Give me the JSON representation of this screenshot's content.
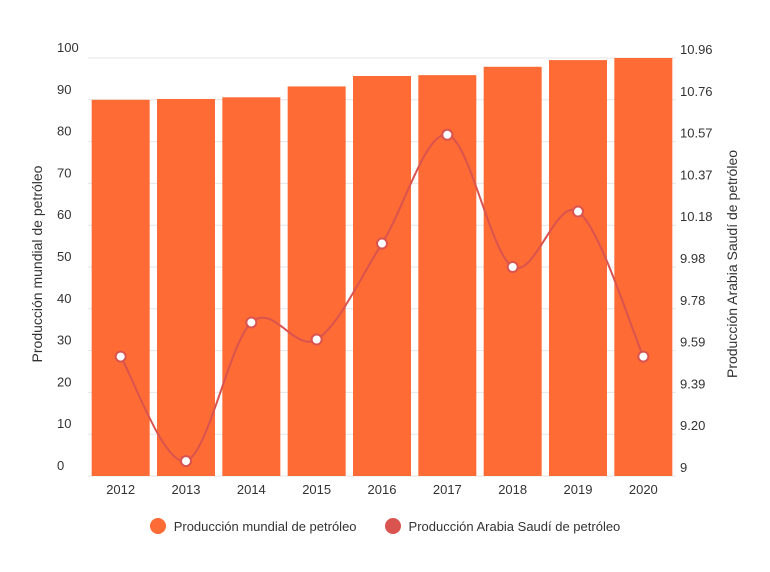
{
  "chart_data": {
    "type": "bar",
    "categories": [
      "2012",
      "2013",
      "2014",
      "2015",
      "2016",
      "2017",
      "2018",
      "2019",
      "2020"
    ],
    "series": [
      {
        "name": "Producción mundial de petróleo",
        "type": "bar",
        "axis": "left",
        "color": "#ff6b35",
        "values": [
          90,
          90.2,
          90.6,
          93.2,
          95.7,
          95.9,
          97.9,
          99.5,
          100
        ]
      },
      {
        "name": "Producción Arabia Saudí de petróleo",
        "type": "line",
        "axis": "right",
        "color": "#d9534f",
        "values": [
          9.56,
          9.07,
          9.72,
          9.64,
          10.09,
          10.6,
          9.98,
          10.24,
          9.56
        ]
      }
    ],
    "y_left": {
      "label": "Producción mundial de petróleo",
      "ticks": [
        "0",
        "10",
        "20",
        "30",
        "40",
        "50",
        "60",
        "70",
        "80",
        "90",
        "100"
      ],
      "ylim": [
        0,
        100
      ]
    },
    "y_right": {
      "label": "Producción Arabia Saudí de petróleo",
      "ticks": [
        "9",
        "9.20",
        "9.39",
        "9.59",
        "9.78",
        "9.98",
        "10.18",
        "10.37",
        "10.57",
        "10.76",
        "10.96"
      ],
      "ylim": [
        9,
        10.96
      ]
    },
    "grid": true,
    "legend_position": "bottom"
  },
  "legend": {
    "items": [
      {
        "label": "Producción mundial de petróleo",
        "color": "#ff6b35"
      },
      {
        "label": "Producción Arabia Saudí de petróleo",
        "color": "#d9534f"
      }
    ]
  }
}
